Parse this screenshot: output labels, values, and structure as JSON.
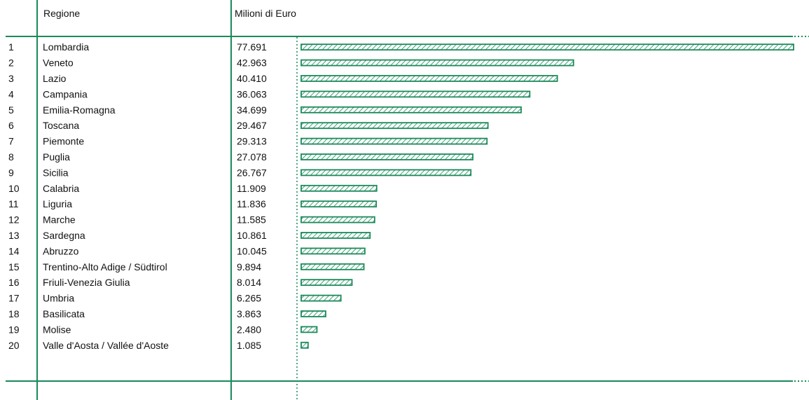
{
  "headers": {
    "rank": "",
    "region": "Regione",
    "value": "Milioni di Euro"
  },
  "colors": {
    "accent": "#1a8a5a",
    "text": "#111111"
  },
  "chart_data": {
    "type": "bar",
    "orientation": "horizontal",
    "title": "",
    "xlabel": "",
    "ylabel": "",
    "xlim": [
      0,
      77691
    ],
    "grid": false,
    "legend": "none",
    "ranks": [
      "1",
      "2",
      "3",
      "4",
      "5",
      "6",
      "7",
      "8",
      "9",
      "10",
      "11",
      "12",
      "13",
      "14",
      "15",
      "16",
      "17",
      "18",
      "19",
      "20"
    ],
    "categories": [
      "Lombardia",
      "Veneto",
      "Lazio",
      "Campania",
      "Emilia-Romagna",
      "Toscana",
      "Piemonte",
      "Puglia",
      "Sicilia",
      "Calabria",
      "Liguria",
      "Marche",
      "Sardegna",
      "Abruzzo",
      "Trentino-Alto Adige / Südtirol",
      "Friuli-Venezia Giulia",
      "Umbria",
      "Basilicata",
      "Molise",
      "Valle d'Aosta / Vallée d'Aoste"
    ],
    "value_labels": [
      "77.691",
      "42.963",
      "40.410",
      "36.063",
      "34.699",
      "29.467",
      "29.313",
      "27.078",
      "26.767",
      "11.909",
      "11.836",
      "11.585",
      "10.861",
      "10.045",
      "9.894",
      "8.014",
      "6.265",
      "3.863",
      "2.480",
      "1.085"
    ],
    "values": [
      77691,
      42963,
      40410,
      36063,
      34699,
      29467,
      29313,
      27078,
      26767,
      11909,
      11836,
      11585,
      10861,
      10045,
      9894,
      8014,
      6265,
      3863,
      2480,
      1085
    ]
  }
}
